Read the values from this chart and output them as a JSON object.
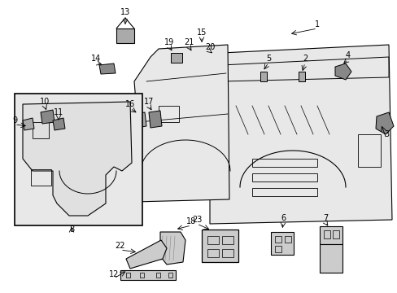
{
  "bg_color": "#ffffff",
  "line_color": "#000000",
  "part_fill": "#e8e8e8",
  "part_fill2": "#d8d8d8",
  "fig_w": 4.89,
  "fig_h": 3.6,
  "dpi": 100
}
